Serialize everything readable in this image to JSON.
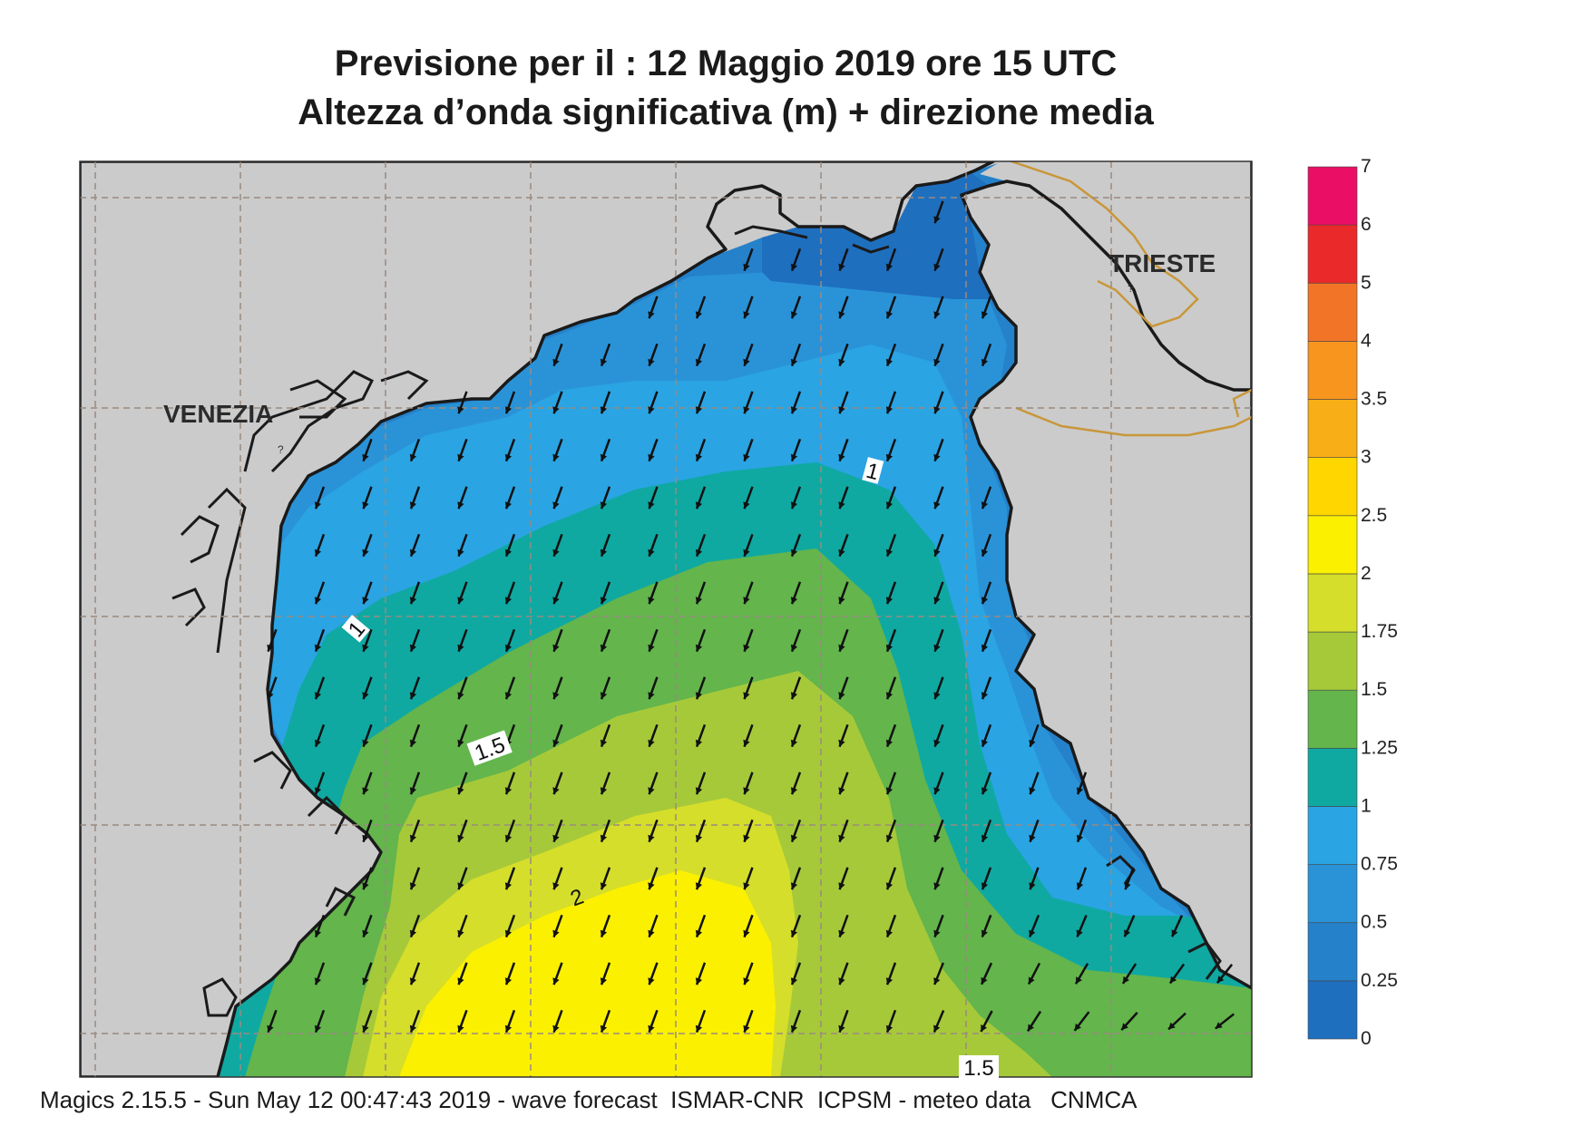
{
  "title_line1": "Previsione per il  :  12   Maggio  2019   ore 15 UTC",
  "title_line2": "Altezza d’onda significativa (m) + direzione media",
  "cities": {
    "venezia": "VENEZIA",
    "trieste": "TRIESTE"
  },
  "contour_labels": [
    "1",
    "1",
    "1.5",
    "2",
    "1.5"
  ],
  "legend": {
    "unit": "m",
    "levels": [
      "0",
      "0.25",
      "0.5",
      "0.75",
      "1",
      "1.25",
      "1.5",
      "1.75",
      "2",
      "2.5",
      "3",
      "3.5",
      "4",
      "5",
      "6",
      "7"
    ],
    "colors": [
      "#1f6fbf",
      "#2581ca",
      "#2a93d8",
      "#2aa4e3",
      "#0fa9a2",
      "#63b54c",
      "#a6c93a",
      "#d5de2a",
      "#fbf000",
      "#ffd600",
      "#f8ae17",
      "#f7951f",
      "#f27527",
      "#ea2a2a",
      "#ea0f64"
    ]
  },
  "colors": {
    "land": "#cbcbcb",
    "coast": "#1a1a1a",
    "border": "#c9973a",
    "grid": "#9a8a80",
    "arrow": "#111111"
  },
  "wave_direction": "toward south-southwest",
  "footer": "Magics 2.15.5 - Sun May 12 00:47:43 2019 - wave forecast  ISMAR-CNR  ICPSM - meteo data   CNMCA"
}
